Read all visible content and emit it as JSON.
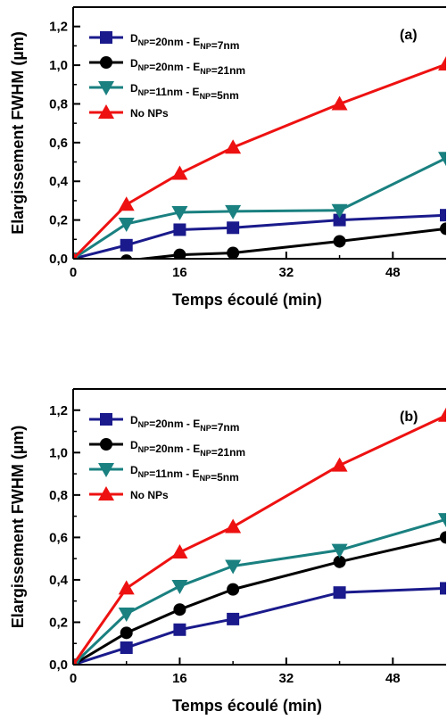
{
  "chart_data": [
    {
      "type": "line",
      "panel_label": "(a)",
      "xlabel": "Temps écoulé (min)",
      "ylabel": "Elargissement FWHM (µm)",
      "xlim": [
        0,
        56
      ],
      "ylim": [
        0,
        1.3
      ],
      "xticks": [
        "0",
        "16",
        "32",
        "48"
      ],
      "xtick_values": [
        0,
        16,
        32,
        48
      ],
      "yticks": [
        "0,0",
        "0,2",
        "0,4",
        "0,6",
        "0,8",
        "1,0",
        "1,2"
      ],
      "ytick_values": [
        0,
        0.2,
        0.4,
        0.6,
        0.8,
        1.0,
        1.2
      ],
      "legend_position": "top-left",
      "series": [
        {
          "name": "DNP=20nm - ENP=7nm",
          "label_parts": [
            [
              "D",
              ""
            ],
            [
              "NP",
              "sub"
            ],
            [
              "=20nm - E",
              ""
            ],
            [
              "NP",
              "sub"
            ],
            [
              "=7nm",
              ""
            ]
          ],
          "color": "#1a1a8c",
          "marker": "square",
          "x": [
            0,
            8,
            16,
            24,
            40,
            56
          ],
          "y": [
            0.0,
            0.07,
            0.15,
            0.16,
            0.2,
            0.225
          ]
        },
        {
          "name": "DNP=20nm - ENP=21nm",
          "label_parts": [
            [
              "D",
              ""
            ],
            [
              "NP",
              "sub"
            ],
            [
              "=20nm - E",
              ""
            ],
            [
              "NP",
              "sub"
            ],
            [
              "=21nm",
              ""
            ]
          ],
          "color": "#000000",
          "marker": "circle",
          "x": [
            0,
            8,
            16,
            24,
            40,
            56
          ],
          "y": [
            0.0,
            -0.01,
            0.02,
            0.03,
            0.09,
            0.155
          ]
        },
        {
          "name": "DNP=11nm - ENP=5nm",
          "label_parts": [
            [
              "D",
              ""
            ],
            [
              "NP",
              "sub"
            ],
            [
              "=11nm - E",
              ""
            ],
            [
              "NP",
              "sub"
            ],
            [
              "=5nm",
              ""
            ]
          ],
          "color": "#1a8080",
          "marker": "triangle-down",
          "x": [
            0,
            8,
            16,
            24,
            40,
            56
          ],
          "y": [
            0.0,
            0.18,
            0.24,
            0.245,
            0.25,
            0.52
          ]
        },
        {
          "name": "No NPs",
          "label_parts": [
            [
              "No NPs",
              ""
            ]
          ],
          "color": "#ee1111",
          "marker": "triangle-up",
          "x": [
            0,
            8,
            16,
            24,
            40,
            56
          ],
          "y": [
            0.0,
            0.28,
            0.44,
            0.575,
            0.8,
            1.005
          ]
        }
      ]
    },
    {
      "type": "line",
      "panel_label": "(b)",
      "xlabel": "Temps écoulé (min)",
      "ylabel": "Elargissement FWHM (µm)",
      "xlim": [
        0,
        56
      ],
      "ylim": [
        0,
        1.3
      ],
      "xticks": [
        "0",
        "16",
        "32",
        "48"
      ],
      "xtick_values": [
        0,
        16,
        32,
        48
      ],
      "yticks": [
        "0,0",
        "0,2",
        "0,4",
        "0,6",
        "0,8",
        "1,0",
        "1,2"
      ],
      "ytick_values": [
        0,
        0.2,
        0.4,
        0.6,
        0.8,
        1.0,
        1.2
      ],
      "legend_position": "top-left",
      "series": [
        {
          "name": "DNP=20nm - ENP=7nm",
          "label_parts": [
            [
              "D",
              ""
            ],
            [
              "NP",
              "sub"
            ],
            [
              "=20nm - E",
              ""
            ],
            [
              "NP",
              "sub"
            ],
            [
              "=7nm",
              ""
            ]
          ],
          "color": "#1a1a8c",
          "marker": "square",
          "x": [
            0,
            8,
            16,
            24,
            40,
            56
          ],
          "y": [
            0.0,
            0.08,
            0.165,
            0.215,
            0.34,
            0.36
          ]
        },
        {
          "name": "DNP=20nm - ENP=21nm",
          "label_parts": [
            [
              "D",
              ""
            ],
            [
              "NP",
              "sub"
            ],
            [
              "=20nm - E",
              ""
            ],
            [
              "NP",
              "sub"
            ],
            [
              "=21nm",
              ""
            ]
          ],
          "color": "#000000",
          "marker": "circle",
          "x": [
            0,
            8,
            16,
            24,
            40,
            56
          ],
          "y": [
            0.0,
            0.15,
            0.26,
            0.355,
            0.485,
            0.6
          ]
        },
        {
          "name": "DNP=11nm - ENP=5nm",
          "label_parts": [
            [
              "D",
              ""
            ],
            [
              "NP",
              "sub"
            ],
            [
              "=11nm - E",
              ""
            ],
            [
              "NP",
              "sub"
            ],
            [
              "=5nm",
              ""
            ]
          ],
          "color": "#1a8080",
          "marker": "triangle-down",
          "x": [
            0,
            8,
            16,
            24,
            40,
            56
          ],
          "y": [
            0.0,
            0.24,
            0.37,
            0.465,
            0.54,
            0.685
          ]
        },
        {
          "name": "No NPs",
          "label_parts": [
            [
              "No NPs",
              ""
            ]
          ],
          "color": "#ee1111",
          "marker": "triangle-up",
          "x": [
            0,
            8,
            16,
            24,
            40,
            56
          ],
          "y": [
            0.0,
            0.36,
            0.53,
            0.65,
            0.94,
            1.175
          ]
        }
      ]
    }
  ]
}
